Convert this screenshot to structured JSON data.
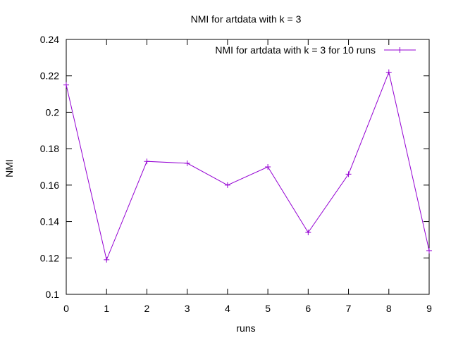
{
  "chart_data": {
    "type": "line",
    "title": "NMI for artdata with k = 3",
    "xlabel": "runs",
    "ylabel": "NMI",
    "xlim": [
      0,
      9
    ],
    "ylim": [
      0.1,
      0.24
    ],
    "x_ticks": [
      "0",
      "1",
      "2",
      "3",
      "4",
      "5",
      "6",
      "7",
      "8",
      "9"
    ],
    "y_ticks": [
      "0.1",
      "0.12",
      "0.14",
      "0.16",
      "0.18",
      "0.2",
      "0.22",
      "0.24"
    ],
    "grid": false,
    "legend_position": "top-right",
    "series": [
      {
        "name": "NMI for artdata with k = 3 for 10 runs",
        "color": "#9400d3",
        "marker": "plus",
        "x": [
          0,
          1,
          2,
          3,
          4,
          5,
          6,
          7,
          8,
          9
        ],
        "y": [
          0.215,
          0.119,
          0.173,
          0.172,
          0.16,
          0.17,
          0.134,
          0.166,
          0.222,
          0.124
        ]
      }
    ]
  }
}
